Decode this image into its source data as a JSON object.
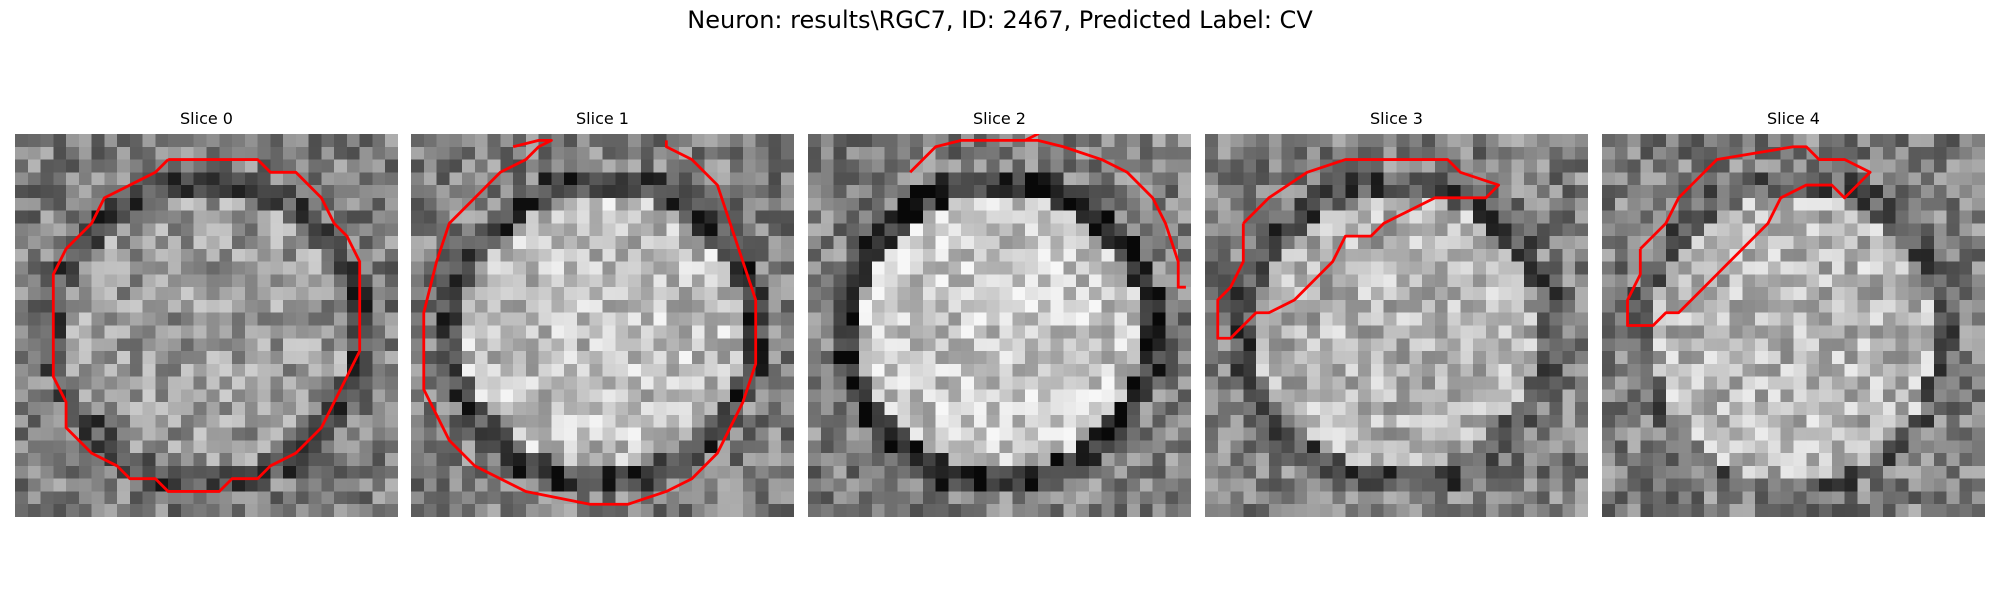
{
  "figure": {
    "title": "Neuron: results\\RGC7, ID: 2467, Predicted Label: CV"
  },
  "contour_color": "#ff0000",
  "panels": [
    {
      "title": "Slice 0",
      "image": {
        "grid": 30,
        "bright": 0.6,
        "ring": 0.72,
        "seed": 11,
        "blob": null
      },
      "contour": [
        [
          12,
          2
        ],
        [
          19,
          2
        ],
        [
          20,
          3
        ],
        [
          22,
          3
        ],
        [
          24,
          5
        ],
        [
          25,
          7
        ],
        [
          26,
          8
        ],
        [
          27,
          10
        ],
        [
          27,
          17
        ],
        [
          26,
          19
        ],
        [
          25,
          21
        ],
        [
          24,
          23
        ],
        [
          22,
          25
        ],
        [
          20,
          26
        ],
        [
          19,
          27
        ],
        [
          17,
          27
        ],
        [
          16,
          28
        ],
        [
          12,
          28
        ],
        [
          11,
          27
        ],
        [
          9,
          27
        ],
        [
          8,
          26
        ],
        [
          6,
          25
        ],
        [
          4,
          23
        ],
        [
          4,
          21
        ],
        [
          3,
          19
        ],
        [
          3,
          11
        ],
        [
          4,
          9
        ],
        [
          6,
          7
        ],
        [
          7,
          5
        ],
        [
          9,
          4
        ],
        [
          11,
          3
        ],
        [
          12,
          2
        ]
      ]
    },
    {
      "title": "Slice 1",
      "image": {
        "grid": 30,
        "bright": 0.75,
        "ring": 0.78,
        "seed": 23,
        "blob": null
      },
      "contour": [
        [
          8,
          1
        ],
        [
          10,
          0.5
        ],
        [
          11,
          0.5
        ],
        [
          10,
          1
        ],
        [
          9,
          2
        ],
        [
          7,
          3
        ],
        [
          5,
          5
        ],
        [
          3,
          7
        ],
        [
          2,
          10
        ],
        [
          1,
          14
        ],
        [
          1,
          20
        ],
        [
          2,
          22
        ],
        [
          3,
          24
        ],
        [
          5,
          26
        ],
        [
          7,
          27
        ],
        [
          9,
          28
        ],
        [
          14,
          29
        ],
        [
          17,
          29
        ],
        [
          20,
          28
        ],
        [
          22,
          27
        ],
        [
          24,
          25
        ],
        [
          25,
          23
        ],
        [
          26,
          21
        ],
        [
          27,
          18
        ],
        [
          27,
          13
        ],
        [
          26,
          10
        ],
        [
          25,
          7
        ],
        [
          24,
          4
        ],
        [
          22,
          2
        ],
        [
          20,
          1
        ],
        [
          20,
          0.5
        ]
      ]
    },
    {
      "title": "Slice 2",
      "image": {
        "grid": 30,
        "bright": 0.78,
        "ring": 0.95,
        "seed": 37,
        "blob": null
      },
      "contour": [
        [
          8,
          3
        ],
        [
          10,
          1
        ],
        [
          12,
          0.5
        ],
        [
          17,
          0.5
        ],
        [
          18,
          0
        ],
        [
          17,
          0.5
        ],
        [
          18,
          0.5
        ],
        [
          20,
          1
        ],
        [
          23,
          2
        ],
        [
          25,
          3
        ],
        [
          27,
          5
        ],
        [
          28,
          7
        ],
        [
          29,
          10
        ],
        [
          29,
          12
        ],
        [
          29.6,
          12
        ]
      ]
    },
    {
      "title": "Slice 3",
      "image": {
        "grid": 30,
        "bright": 0.7,
        "ring": 0.65,
        "seed": 51,
        "blob": null
      },
      "contour": [
        [
          3,
          7
        ],
        [
          5,
          5
        ],
        [
          8,
          3
        ],
        [
          11,
          2
        ],
        [
          19,
          2
        ],
        [
          20,
          3
        ],
        [
          23,
          4
        ],
        [
          22,
          5
        ],
        [
          18,
          5
        ],
        [
          16,
          6
        ],
        [
          14,
          7
        ],
        [
          13,
          8
        ],
        [
          11,
          8
        ],
        [
          10,
          10
        ],
        [
          9,
          11
        ],
        [
          8,
          12
        ],
        [
          7,
          13
        ],
        [
          5,
          14
        ],
        [
          4,
          14
        ],
        [
          3,
          15
        ],
        [
          2,
          16
        ],
        [
          1,
          16
        ],
        [
          1,
          13
        ],
        [
          2,
          12
        ],
        [
          3,
          10
        ],
        [
          3,
          7
        ]
      ]
    },
    {
      "title": "Slice 4",
      "image": {
        "grid": 30,
        "bright": 0.72,
        "ring": 0.55,
        "seed": 67,
        "blob": [
          0.5,
          0.55,
          0.36
        ]
      },
      "contour": [
        [
          3,
          9
        ],
        [
          5,
          7
        ],
        [
          6,
          5
        ],
        [
          7,
          4
        ],
        [
          9,
          2
        ],
        [
          15,
          1
        ],
        [
          16,
          1
        ],
        [
          17,
          2
        ],
        [
          19,
          2
        ],
        [
          21,
          3
        ],
        [
          20,
          4
        ],
        [
          19,
          5
        ],
        [
          18,
          4
        ],
        [
          17,
          4
        ],
        [
          16,
          4
        ],
        [
          14,
          5
        ],
        [
          13,
          7
        ],
        [
          12,
          8
        ],
        [
          11,
          9
        ],
        [
          10,
          10
        ],
        [
          9,
          11
        ],
        [
          8,
          12
        ],
        [
          7,
          13
        ],
        [
          6,
          14
        ],
        [
          5,
          14
        ],
        [
          4,
          15
        ],
        [
          2,
          15
        ],
        [
          2,
          13
        ],
        [
          3,
          11
        ],
        [
          3,
          9
        ]
      ]
    }
  ]
}
